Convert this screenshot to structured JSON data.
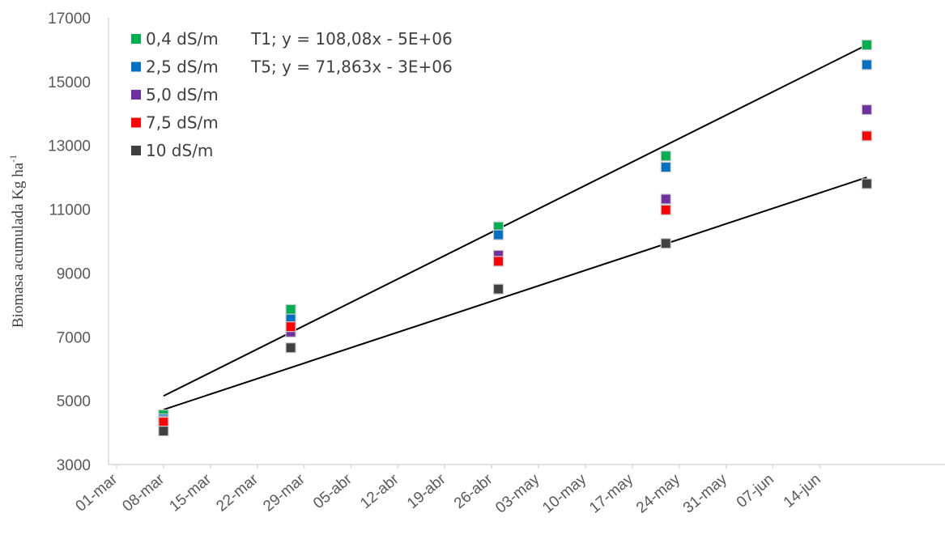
{
  "chart_data": {
    "type": "scatter",
    "ylabel_main": "Biomasa acumulada Kg ha",
    "ylabel_sup": "-1",
    "xlabel": "",
    "ylim": [
      3000,
      17000
    ],
    "yticks": [
      "3000",
      "5000",
      "7000",
      "9000",
      "11000",
      "13000",
      "15000",
      "17000"
    ],
    "xlim": [
      "2021-03-01",
      "2021-06-21"
    ],
    "xticks": [
      {
        "date": "2021-03-01",
        "label": "01-mar"
      },
      {
        "date": "2021-03-08",
        "label": "08-mar"
      },
      {
        "date": "2021-03-15",
        "label": "15-mar"
      },
      {
        "date": "2021-03-22",
        "label": "22-mar"
      },
      {
        "date": "2021-03-29",
        "label": "29-mar"
      },
      {
        "date": "2021-04-05",
        "label": "05-abr"
      },
      {
        "date": "2021-04-12",
        "label": "12-abr"
      },
      {
        "date": "2021-04-19",
        "label": "19-abr"
      },
      {
        "date": "2021-04-26",
        "label": "26-abr"
      },
      {
        "date": "2021-05-03",
        "label": "03-may"
      },
      {
        "date": "2021-05-10",
        "label": "10-may"
      },
      {
        "date": "2021-05-17",
        "label": "17-may"
      },
      {
        "date": "2021-05-24",
        "label": "24-may"
      },
      {
        "date": "2021-05-31",
        "label": "31-may"
      },
      {
        "date": "2021-06-07",
        "label": "07-jun"
      },
      {
        "date": "2021-06-14",
        "label": "14-jun"
      }
    ],
    "x": [
      "2021-03-08",
      "2021-03-27",
      "2021-04-27",
      "2021-05-22",
      "2021-06-21"
    ],
    "series": [
      {
        "name": "0,4 dS/m",
        "color": "#00b050",
        "values": [
          4560,
          7860,
          10450,
          12670,
          16150
        ]
      },
      {
        "name": "2,5 dS/m",
        "color": "#0070c0",
        "values": [
          4430,
          7560,
          10200,
          12320,
          15530
        ]
      },
      {
        "name": "5,0 dS/m",
        "color": "#7030a0",
        "values": [
          4370,
          7150,
          9560,
          11320,
          14120
        ]
      },
      {
        "name": "7,5 dS/m",
        "color": "#ff0000",
        "values": [
          4330,
          7320,
          9370,
          10980,
          13300
        ]
      },
      {
        "name": "10 dS/m",
        "color": "#404040",
        "values": [
          4050,
          6660,
          8500,
          9930,
          11800
        ]
      }
    ],
    "trendlines": [
      {
        "label": "T1; y = 108,08x - 5E+06",
        "start": {
          "x": "2021-03-08",
          "y": 5150
        },
        "end": {
          "x": "2021-06-21",
          "y": 16150
        }
      },
      {
        "label": "T5; y = 71,863x - 3E+06",
        "start": {
          "x": "2021-03-08",
          "y": 4720
        },
        "end": {
          "x": "2021-06-21",
          "y": 12000
        }
      }
    ],
    "legend_position": "top-left",
    "grid": false
  }
}
